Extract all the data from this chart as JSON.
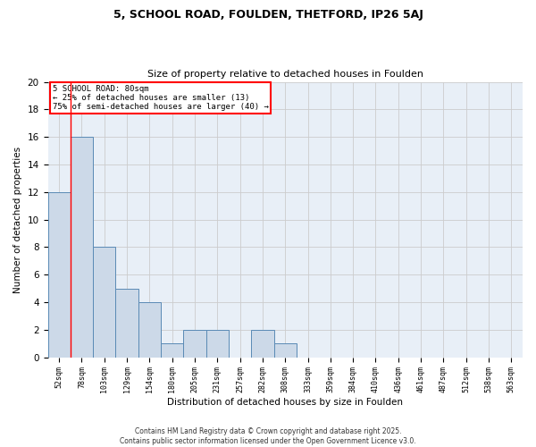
{
  "title_line1": "5, SCHOOL ROAD, FOULDEN, THETFORD, IP26 5AJ",
  "title_line2": "Size of property relative to detached houses in Foulden",
  "xlabel": "Distribution of detached houses by size in Foulden",
  "ylabel": "Number of detached properties",
  "bar_labels": [
    "52sqm",
    "78sqm",
    "103sqm",
    "129sqm",
    "154sqm",
    "180sqm",
    "205sqm",
    "231sqm",
    "257sqm",
    "282sqm",
    "308sqm",
    "333sqm",
    "359sqm",
    "384sqm",
    "410sqm",
    "436sqm",
    "461sqm",
    "487sqm",
    "512sqm",
    "538sqm",
    "563sqm"
  ],
  "bar_values": [
    12,
    16,
    8,
    5,
    4,
    1,
    2,
    2,
    0,
    2,
    1,
    0,
    0,
    0,
    0,
    0,
    0,
    0,
    0,
    0,
    0
  ],
  "bar_color": "#ccd9e8",
  "bar_edge_color": "#5a8ab5",
  "grid_color": "#cccccc",
  "vline_color": "red",
  "annotation_text": "5 SCHOOL ROAD: 80sqm\n← 25% of detached houses are smaller (13)\n75% of semi-detached houses are larger (40) →",
  "annotation_box_color": "white",
  "annotation_box_edge": "red",
  "ylim": [
    0,
    20
  ],
  "yticks": [
    0,
    2,
    4,
    6,
    8,
    10,
    12,
    14,
    16,
    18,
    20
  ],
  "footer_line1": "Contains HM Land Registry data © Crown copyright and database right 2025.",
  "footer_line2": "Contains public sector information licensed under the Open Government Licence v3.0.",
  "bg_color": "#e8eff7"
}
